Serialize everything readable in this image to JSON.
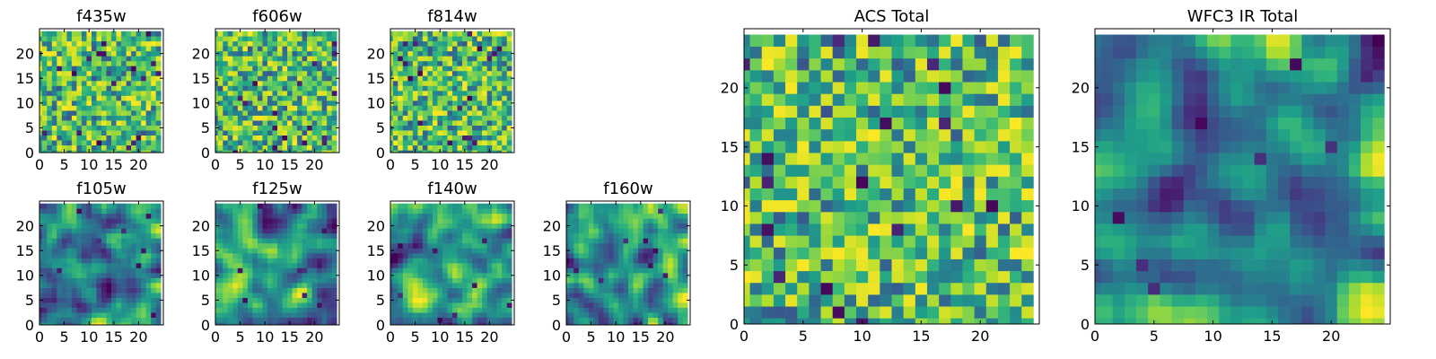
{
  "chart_data": [
    {
      "type": "heatmap",
      "title": "f435w",
      "grid_size": 25,
      "xlim": [
        0,
        25
      ],
      "ylim": [
        0,
        25
      ],
      "xticks": [
        0,
        5,
        10,
        15,
        20
      ],
      "yticks": [
        0,
        5,
        10,
        15,
        20
      ],
      "colormap": "viridis",
      "pattern": "noise",
      "seed": 11
    },
    {
      "type": "heatmap",
      "title": "f606w",
      "grid_size": 25,
      "xlim": [
        0,
        25
      ],
      "ylim": [
        0,
        25
      ],
      "xticks": [
        0,
        5,
        10,
        15,
        20
      ],
      "yticks": [
        0,
        5,
        10,
        15,
        20
      ],
      "colormap": "viridis",
      "pattern": "noise",
      "seed": 23
    },
    {
      "type": "heatmap",
      "title": "f814w",
      "grid_size": 25,
      "xlim": [
        0,
        25
      ],
      "ylim": [
        0,
        25
      ],
      "xticks": [
        0,
        5,
        10,
        15,
        20
      ],
      "yticks": [
        0,
        5,
        10,
        15,
        20
      ],
      "colormap": "viridis",
      "pattern": "noise",
      "seed": 37
    },
    {
      "type": "heatmap",
      "title": "f105w",
      "grid_size": 25,
      "xlim": [
        0,
        25
      ],
      "ylim": [
        0,
        25
      ],
      "xticks": [
        0,
        5,
        10,
        15,
        20
      ],
      "yticks": [
        0,
        5,
        10,
        15,
        20
      ],
      "colormap": "viridis",
      "pattern": "smooth",
      "seed": 41
    },
    {
      "type": "heatmap",
      "title": "f125w",
      "grid_size": 25,
      "xlim": [
        0,
        25
      ],
      "ylim": [
        0,
        25
      ],
      "xticks": [
        0,
        5,
        10,
        15,
        20
      ],
      "yticks": [
        0,
        5,
        10,
        15,
        20
      ],
      "colormap": "viridis",
      "pattern": "smooth",
      "seed": 53
    },
    {
      "type": "heatmap",
      "title": "f140w",
      "grid_size": 25,
      "xlim": [
        0,
        25
      ],
      "ylim": [
        0,
        25
      ],
      "xticks": [
        0,
        5,
        10,
        15,
        20
      ],
      "yticks": [
        0,
        5,
        10,
        15,
        20
      ],
      "colormap": "viridis",
      "pattern": "smooth",
      "seed": 67
    },
    {
      "type": "heatmap",
      "title": "f160w",
      "grid_size": 25,
      "xlim": [
        0,
        25
      ],
      "ylim": [
        0,
        25
      ],
      "xticks": [
        0,
        5,
        10,
        15,
        20
      ],
      "yticks": [
        0,
        5,
        10,
        15,
        20
      ],
      "colormap": "viridis",
      "pattern": "smooth",
      "seed": 79
    },
    {
      "type": "heatmap",
      "title": "ACS Total",
      "grid_size": 25,
      "xlim": [
        0,
        25
      ],
      "ylim": [
        0,
        25
      ],
      "xticks": [
        0,
        5,
        10,
        15,
        20
      ],
      "yticks": [
        0,
        5,
        10,
        15,
        20
      ],
      "colormap": "viridis",
      "pattern": "noise",
      "seed": 97
    },
    {
      "type": "heatmap",
      "title": "WFC3 IR Total",
      "grid_size": 25,
      "xlim": [
        0,
        25
      ],
      "ylim": [
        0,
        25
      ],
      "xticks": [
        0,
        5,
        10,
        15,
        20
      ],
      "yticks": [
        0,
        5,
        10,
        15,
        20
      ],
      "colormap": "viridis",
      "pattern": "smooth",
      "seed": 103
    }
  ]
}
